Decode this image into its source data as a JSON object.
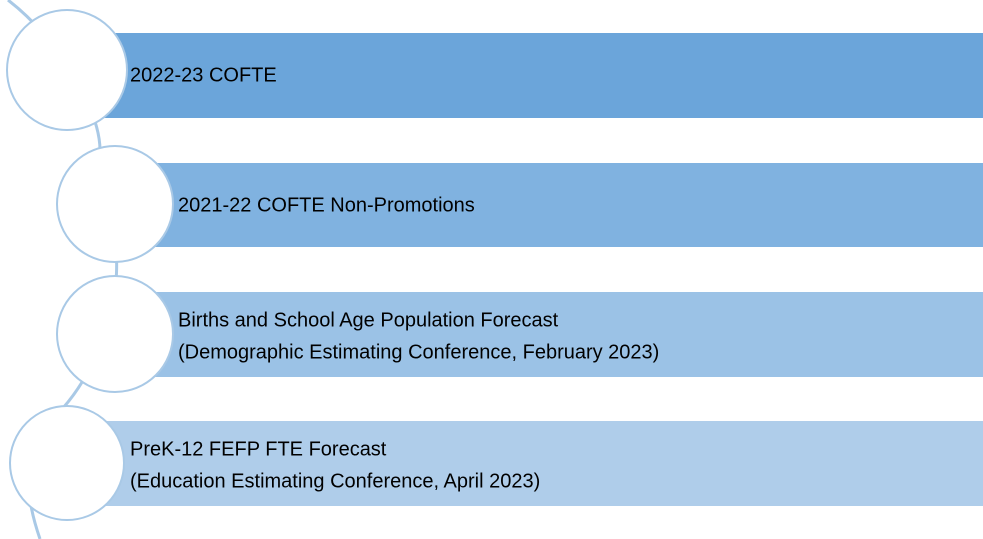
{
  "items": [
    {
      "lines": [
        "2022-23 COFTE"
      ]
    },
    {
      "lines": [
        "2021-22 COFTE Non-Promotions"
      ]
    },
    {
      "lines": [
        "Births and School Age Population Forecast",
        "(Demographic Estimating Conference, February 2023)"
      ]
    },
    {
      "lines": [
        "PreK-12 FEFP FTE Forecast",
        "(Education Estimating Conference, April 2023)"
      ]
    }
  ]
}
